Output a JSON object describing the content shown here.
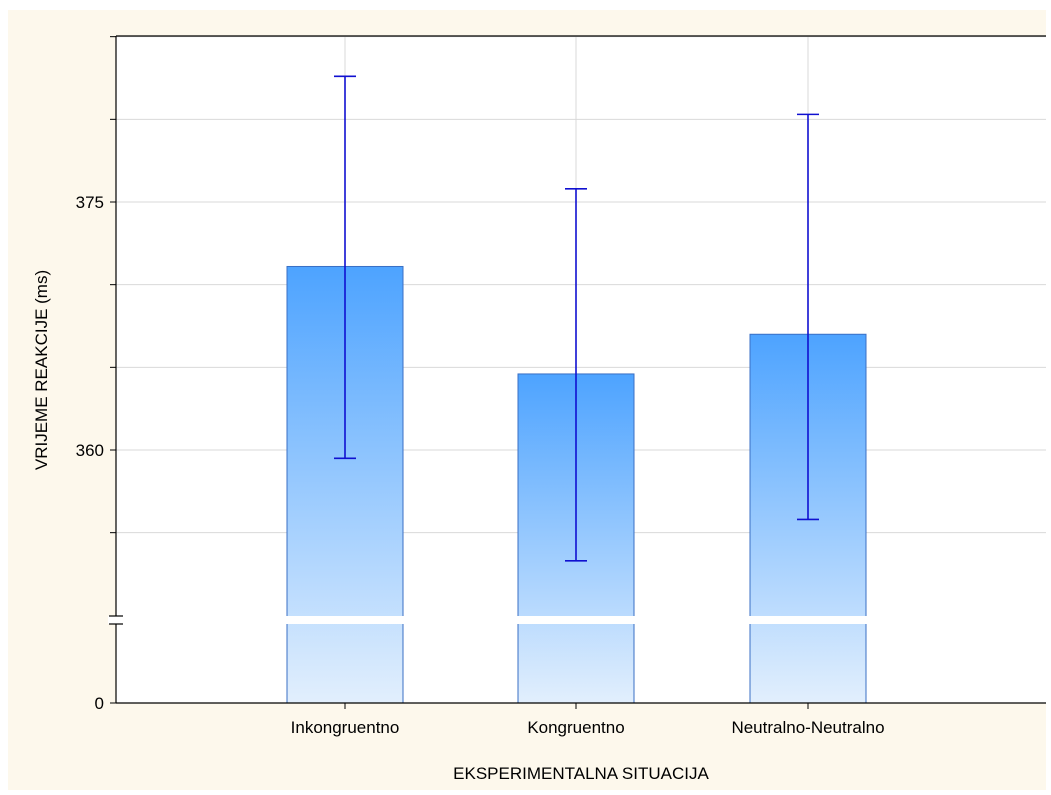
{
  "chart_data": {
    "type": "bar",
    "title": "",
    "xlabel": "EKSPERIMENTALNA SITUACIJA",
    "ylabel": "VRIJEME REAKCIJE (ms)",
    "categories": [
      "Inkongruentno",
      "Kongruentno",
      "Neutralno-Neutralno"
    ],
    "values": [
      371.1,
      364.6,
      367.0
    ],
    "error_low": [
      359.5,
      353.3,
      355.8
    ],
    "error_high": [
      382.6,
      375.8,
      380.3
    ],
    "y_axis_broken": true,
    "ylim_upper": [
      350,
      390
    ],
    "ylim_lower": [
      0,
      5
    ],
    "yticks_labeled": [
      0,
      360,
      375
    ],
    "grid": true,
    "bar_color_top": "#4da3ff",
    "bar_color_bottom": "#e2effd",
    "bar_edge_color": "#3a6fc4",
    "error_bar_color": "#1010d0",
    "background": "#fdf8ec"
  }
}
